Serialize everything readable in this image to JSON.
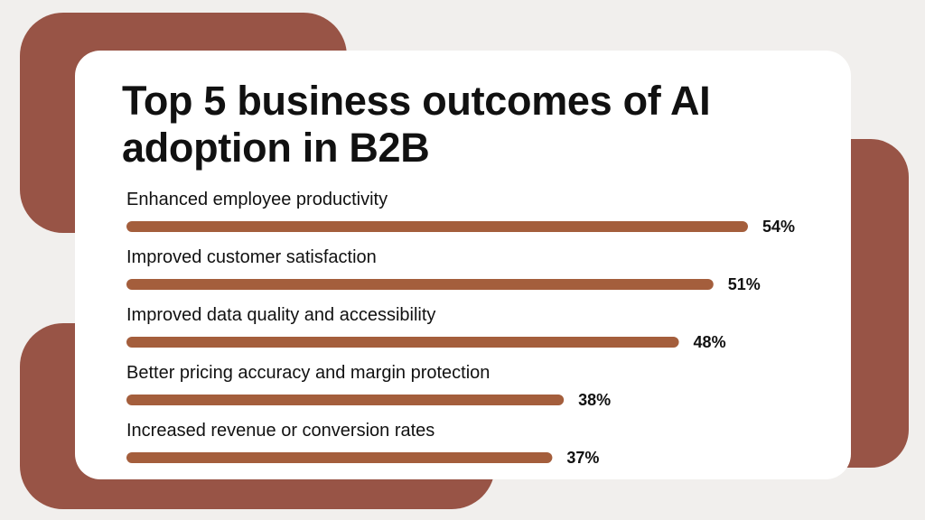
{
  "colors": {
    "background": "#f1efed",
    "accent": "#985446",
    "bar": "#a45e3c",
    "card": "#ffffff",
    "text": "#111111"
  },
  "chart_data": {
    "type": "bar",
    "orientation": "horizontal",
    "title": "Top 5 business outcomes of AI adoption in B2B",
    "categories": [
      "Enhanced employee productivity",
      "Improved customer satisfaction",
      "Improved data quality and accessibility",
      "Better pricing accuracy and margin protection",
      "Increased revenue or conversion rates"
    ],
    "values": [
      54,
      51,
      48,
      38,
      37
    ],
    "value_labels": [
      "54%",
      "51%",
      "48%",
      "38%",
      "37%"
    ],
    "unit": "%",
    "xlim": [
      0,
      54
    ],
    "grid": false,
    "legend": "none"
  }
}
